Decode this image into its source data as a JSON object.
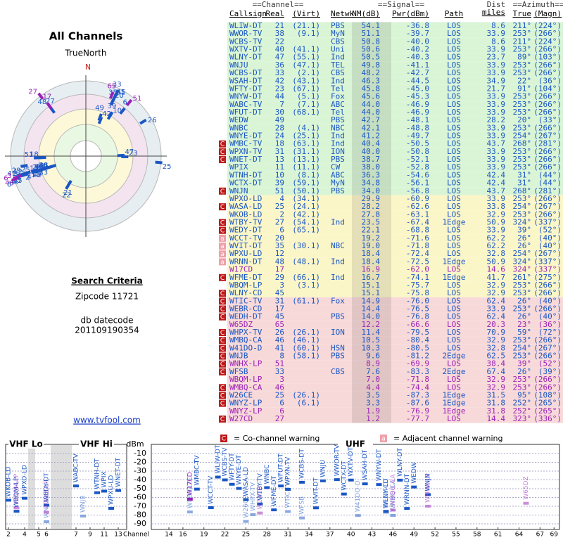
{
  "left": {
    "title": "All Channels",
    "compass": "TrueNorth",
    "north": "N",
    "criteria_title": "Search Criteria",
    "zipcode": "Zipcode 11721",
    "datecode_label": "db datecode",
    "datecode": "201109190354",
    "link": "www.tvfool.com"
  },
  "table": {
    "group_headers": [
      "==Channel==",
      "==Signal==",
      "Dist",
      "==Azimuth=="
    ],
    "headers": [
      "Callsign",
      "Real",
      "(Virt)",
      "Netwk",
      "NM(dB)",
      "Pwr(dBm)",
      "Path",
      "miles",
      "True",
      "(Magn)"
    ],
    "rows": [
      {
        "cells": [
          null,
          "WLIW-DT",
          "21",
          "(21.1)",
          "PBS",
          "54.1",
          "-36.8",
          "LOS",
          "8.6",
          "211°",
          "(224°)"
        ],
        "color": "#1a56c4"
      },
      {
        "cells": [
          null,
          "WWOR-TV",
          "38",
          "(9.1)",
          "MyN",
          "51.1",
          "-39.7",
          "LOS",
          "33.9",
          "253°",
          "(266°)"
        ],
        "color": "#1a56c4"
      },
      {
        "cells": [
          null,
          "WCBS-TV",
          "22",
          null,
          "CBS",
          "50.8",
          "-40.0",
          "LOS",
          "8.6",
          "211°",
          "(224°)"
        ],
        "color": "#1a56c4"
      },
      {
        "cells": [
          null,
          "WXTV-DT",
          "40",
          "(41.1)",
          "Uni",
          "50.6",
          "-40.2",
          "LOS",
          "33.9",
          "253°",
          "(266°)"
        ],
        "color": "#1a56c4"
      },
      {
        "cells": [
          null,
          "WLNY-DT",
          "47",
          "(55.1)",
          "Ind",
          "50.5",
          "-40.3",
          "LOS",
          "23.7",
          "89°",
          "(103°)"
        ],
        "color": "#1a56c4"
      },
      {
        "cells": [
          null,
          "WNJU",
          "36",
          "(47.1)",
          "TEL",
          "49.8",
          "-41.1",
          "LOS",
          "33.9",
          "253°",
          "(266°)"
        ],
        "color": "#1a56c4"
      },
      {
        "cells": [
          null,
          "WCBS-DT",
          "33",
          "(2.1)",
          "CBS",
          "48.2",
          "-42.7",
          "LOS",
          "33.9",
          "253°",
          "(266°)"
        ],
        "color": "#1a56c4"
      },
      {
        "cells": [
          null,
          "WSAH-DT",
          "42",
          "(43.1)",
          "Ind",
          "46.3",
          "-44.5",
          "LOS",
          "34.9",
          "22°",
          "(36°)"
        ],
        "color": "#1a56c4"
      },
      {
        "cells": [
          null,
          "WFTY-DT",
          "23",
          "(67.1)",
          "Tel",
          "45.8",
          "-45.0",
          "LOS",
          "21.7",
          "91°",
          "(104°)"
        ],
        "color": "#1a56c4"
      },
      {
        "cells": [
          null,
          "WNYW-DT",
          "44",
          "(5.1)",
          "Fox",
          "45.6",
          "-45.3",
          "LOS",
          "33.9",
          "253°",
          "(266°)"
        ],
        "color": "#1a56c4"
      },
      {
        "cells": [
          null,
          "WABC-TV",
          "7",
          "(7.1)",
          "ABC",
          "44.0",
          "-46.9",
          "LOS",
          "33.9",
          "253°",
          "(266°)"
        ],
        "color": "#1a56c4"
      },
      {
        "cells": [
          null,
          "WFUT-DT",
          "30",
          "(68.1)",
          "Tel",
          "44.0",
          "-46.9",
          "LOS",
          "33.9",
          "253°",
          "(266°)"
        ],
        "color": "#1a56c4"
      },
      {
        "cells": [
          null,
          "WEDW",
          "49",
          null,
          "PBS",
          "42.7",
          "-48.1",
          "LOS",
          "28.2",
          "20°",
          "(33°)"
        ],
        "color": "#1a56c4"
      },
      {
        "cells": [
          null,
          "WNBC",
          "28",
          "(4.1)",
          "NBC",
          "42.1",
          "-48.8",
          "LOS",
          "33.9",
          "253°",
          "(266°)"
        ],
        "color": "#1a56c4"
      },
      {
        "cells": [
          null,
          "WNYE-DT",
          "24",
          "(25.1)",
          "Ind",
          "41.2",
          "-49.7",
          "LOS",
          "33.9",
          "254°",
          "(267°)"
        ],
        "color": "#1a56c4"
      },
      {
        "cells": [
          "C",
          "WMBC-TV",
          "18",
          "(63.1)",
          "Ind",
          "40.4",
          "-50.5",
          "LOS",
          "43.7",
          "268°",
          "(281°)"
        ],
        "color": "#1a56c4"
      },
      {
        "cells": [
          "C",
          "WPXN-TV",
          "31",
          "(31.1)",
          "ION",
          "40.0",
          "-50.8",
          "LOS",
          "33.9",
          "253°",
          "(266°)"
        ],
        "color": "#1a56c4"
      },
      {
        "cells": [
          "C",
          "WNET-DT",
          "13",
          "(13.1)",
          "PBS",
          "38.7",
          "-52.1",
          "LOS",
          "33.9",
          "253°",
          "(266°)"
        ],
        "color": "#1a56c4"
      },
      {
        "cells": [
          null,
          "WPIX",
          "11",
          "(11.1)",
          "CW",
          "38.0",
          "-52.8",
          "LOS",
          "33.9",
          "253°",
          "(266°)"
        ],
        "color": "#1a56c4"
      },
      {
        "cells": [
          null,
          "WTNH-DT",
          "10",
          "(8.1)",
          "ABC",
          "36.3",
          "-54.6",
          "LOS",
          "42.4",
          "31°",
          "(44°)"
        ],
        "color": "#1a56c4"
      },
      {
        "cells": [
          null,
          "WCTX-DT",
          "39",
          "(59.1)",
          "MyN",
          "34.8",
          "-56.1",
          "LOS",
          "42.4",
          "31°",
          "(44°)"
        ],
        "color": "#1a56c4"
      },
      {
        "cells": [
          "C",
          "WNJN",
          "51",
          "(50.1)",
          "PBS",
          "34.0",
          "-56.8",
          "LOS",
          "43.7",
          "268°",
          "(281°)"
        ],
        "color": "#1a56c4"
      },
      {
        "cells": [
          null,
          "WPXO-LD",
          "4",
          "(34.1)",
          null,
          "29.9",
          "-60.9",
          "LOS",
          "33.9",
          "253°",
          "(266°)"
        ],
        "color": "#1a56c4"
      },
      {
        "cells": [
          "C",
          "WASA-LD",
          "25",
          "(24.1)",
          null,
          "28.2",
          "-62.6",
          "LOS",
          "33.8",
          "254°",
          "(267°)"
        ],
        "color": "#1a56c4"
      },
      {
        "cells": [
          null,
          "WKOB-LD",
          "2",
          "(42.1)",
          null,
          "27.8",
          "-63.1",
          "LOS",
          "32.9",
          "253°",
          "(266°)"
        ],
        "color": "#1a56c4"
      },
      {
        "cells": [
          "C",
          "WTBY-TV",
          "27",
          "(54.1)",
          "Ind",
          "23.5",
          "-67.4",
          "1Edge",
          "50.9",
          "324°",
          "(337°)"
        ],
        "color": "#1a56c4"
      },
      {
        "cells": [
          "C",
          "WEDY-DT",
          "6",
          "(65.1)",
          null,
          "22.1",
          "-68.8",
          "LOS",
          "33.9",
          "39°",
          "(52°)"
        ],
        "color": "#1a56c4"
      },
      {
        "cells": [
          "a",
          "WCCT-TV",
          "20",
          null,
          null,
          "19.2",
          "-71.6",
          "LOS",
          "62.2",
          "26°",
          "(40°)"
        ],
        "color": "#1a56c4"
      },
      {
        "cells": [
          "a",
          "WVIT-DT",
          "35",
          "(30.1)",
          "NBC",
          "19.0",
          "-71.8",
          "LOS",
          "62.2",
          "26°",
          "(40°)"
        ],
        "color": "#1a56c4"
      },
      {
        "cells": [
          "a",
          "WPXU-LD",
          "12",
          null,
          null,
          "18.4",
          "-72.4",
          "LOS",
          "32.8",
          "254°",
          "(267°)"
        ],
        "color": "#1a56c4"
      },
      {
        "cells": [
          "a",
          "WRNN-DT",
          "48",
          "(48.1)",
          "Ind",
          "18.4",
          "-72.5",
          "1Edge",
          "50.9",
          "324°",
          "(337°)"
        ],
        "color": "#1a56c4"
      },
      {
        "cells": [
          null,
          "W17CD",
          "17",
          null,
          null,
          "16.9",
          "-62.0",
          "LOS",
          "14.6",
          "324°",
          "(337°)"
        ],
        "color": "#9a1fb8"
      },
      {
        "cells": [
          "C",
          "WFME-DT",
          "29",
          "(66.1)",
          "Ind",
          "16.7",
          "-74.1",
          "1Edge",
          "41.7",
          "261°",
          "(275°)"
        ],
        "color": "#1a56c4"
      },
      {
        "cells": [
          null,
          "WBQM-LP",
          "3",
          "(3.1)",
          null,
          "15.1",
          "-75.7",
          "LOS",
          "32.9",
          "253°",
          "(266°)"
        ],
        "color": "#1a56c4"
      },
      {
        "cells": [
          "C",
          "WLNY-CD",
          "45",
          null,
          null,
          "15.1",
          "-75.8",
          "LOS",
          "32.9",
          "253°",
          "(266°)"
        ],
        "color": "#1a56c4"
      },
      {
        "cells": [
          "C",
          "WTIC-TV",
          "31",
          "(61.1)",
          "Fox",
          "14.9",
          "-76.0",
          "LOS",
          "62.4",
          "26°",
          "(40°)"
        ],
        "color": "#1a56c4"
      },
      {
        "cells": [
          "C",
          "WEBR-CD",
          "17",
          null,
          null,
          "14.4",
          "-76.5",
          "LOS",
          "33.9",
          "253°",
          "(266°)"
        ],
        "color": "#1a56c4"
      },
      {
        "cells": [
          "C",
          "WEDH-DT",
          "45",
          null,
          "PBS",
          "14.0",
          "-76.8",
          "LOS",
          "62.4",
          "26°",
          "(40°)"
        ],
        "color": "#1a56c4"
      },
      {
        "cells": [
          null,
          "W65DZ",
          "65",
          null,
          null,
          "12.2",
          "-66.6",
          "LOS",
          "20.3",
          "23°",
          "(36°)"
        ],
        "color": "#9a1fb8"
      },
      {
        "cells": [
          "C",
          "WHPX-TV",
          "26",
          "(26.1)",
          "ION",
          "11.4",
          "-79.5",
          "LOS",
          "70.9",
          "59°",
          "(72°)"
        ],
        "color": "#1a56c4"
      },
      {
        "cells": [
          "C",
          "WMBQ-CA",
          "46",
          "(46.1)",
          null,
          "10.5",
          "-80.4",
          "LOS",
          "32.9",
          "253°",
          "(266°)"
        ],
        "color": "#1a56c4"
      },
      {
        "cells": [
          "C",
          "W41DO-D",
          "41",
          "(60.1)",
          "HSN",
          "10.3",
          "-80.5",
          "LOS",
          "32.8",
          "254°",
          "(267°)"
        ],
        "color": "#1a56c4"
      },
      {
        "cells": [
          "C",
          "WNJB",
          "8",
          "(58.1)",
          "PBS",
          "9.6",
          "-81.2",
          "2Edge",
          "62.5",
          "253°",
          "(266°)"
        ],
        "color": "#1a56c4"
      },
      {
        "cells": [
          "C",
          "WNHX-LP",
          "51",
          null,
          null,
          "8.9",
          "-69.9",
          "LOS",
          "38.4",
          "39°",
          "(52°)"
        ],
        "color": "#9a1fb8"
      },
      {
        "cells": [
          "C",
          "WFSB",
          "33",
          null,
          "CBS",
          "7.6",
          "-83.3",
          "2Edge",
          "67.4",
          "26°",
          "(39°)"
        ],
        "color": "#1a56c4"
      },
      {
        "cells": [
          null,
          "WBQM-LP",
          "3",
          null,
          null,
          "7.0",
          "-71.8",
          "LOS",
          "32.9",
          "253°",
          "(266°)"
        ],
        "color": "#9a1fb8"
      },
      {
        "cells": [
          "C",
          "WMBQ-CA",
          "46",
          null,
          null,
          "4.4",
          "-74.4",
          "LOS",
          "32.9",
          "253°",
          "(266°)"
        ],
        "color": "#9a1fb8"
      },
      {
        "cells": [
          "C",
          "W26CE",
          "25",
          "(26.1)",
          null,
          "3.5",
          "-87.3",
          "1Edge",
          "31.5",
          "95°",
          "(108°)"
        ],
        "color": "#1a56c4"
      },
      {
        "cells": [
          "C",
          "WNYZ-LP",
          "6",
          "(6.1)",
          null,
          "3.3",
          "-87.6",
          "1Edge",
          "31.8",
          "252°",
          "(265°)"
        ],
        "color": "#1a56c4"
      },
      {
        "cells": [
          null,
          "WNYZ-LP",
          "6",
          null,
          null,
          "1.9",
          "-76.9",
          "1Edge",
          "31.8",
          "252°",
          "(265°)"
        ],
        "color": "#9a1fb8"
      },
      {
        "cells": [
          "C",
          "W27CD",
          "27",
          null,
          null,
          "1.2",
          "-77.7",
          "LOS",
          "14.4",
          "323°",
          "(336°)"
        ],
        "color": "#9a1fb8"
      }
    ]
  },
  "spectrum": {
    "legend": [
      {
        "mark": "C",
        "text": "= Co-channel warning"
      },
      {
        "mark": "a",
        "text": "= Adjacent channel warning"
      }
    ],
    "bands": [
      {
        "name": "VHF Lo",
        "ticks": [
          2,
          4,
          5,
          6
        ]
      },
      {
        "name": "VHF Hi",
        "ticks": [
          7,
          9,
          11,
          13
        ]
      },
      {
        "name": "UHF",
        "ticks": [
          14,
          16,
          19,
          22,
          25,
          28,
          31,
          34,
          37,
          40,
          43,
          46,
          49,
          52,
          55,
          58,
          61,
          64,
          67,
          69
        ]
      }
    ],
    "y_label": "dBm",
    "x_label": "Channel",
    "ylim": [
      -5,
      -95
    ],
    "yticks": [
      -10,
      -20,
      -30,
      -40,
      -50,
      -60,
      -70,
      -80,
      -90
    ]
  }
}
